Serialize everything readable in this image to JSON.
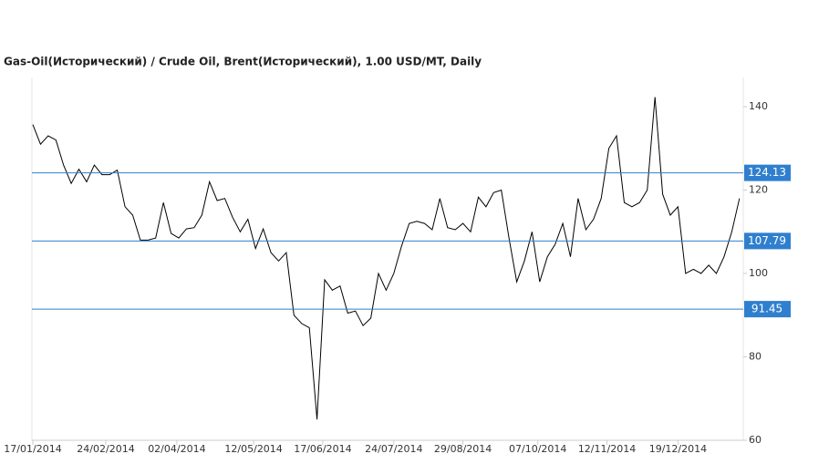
{
  "chart_data": {
    "type": "line",
    "title": "Gas-Oil(Исторический) / Crude Oil, Brent(Исторический), 1.00 USD/MT, Daily",
    "x": [
      "2014-01-17",
      "2014-01-21",
      "2014-01-25",
      "2014-01-29",
      "2014-02-02",
      "2014-02-06",
      "2014-02-10",
      "2014-02-14",
      "2014-02-18",
      "2014-02-22",
      "2014-02-26",
      "2014-03-02",
      "2014-03-06",
      "2014-03-10",
      "2014-03-14",
      "2014-03-18",
      "2014-03-22",
      "2014-03-26",
      "2014-03-30",
      "2014-04-03",
      "2014-04-07",
      "2014-04-11",
      "2014-04-15",
      "2014-04-19",
      "2014-04-23",
      "2014-04-27",
      "2014-05-01",
      "2014-05-05",
      "2014-05-09",
      "2014-05-13",
      "2014-05-17",
      "2014-05-21",
      "2014-05-25",
      "2014-05-29",
      "2014-06-02",
      "2014-06-06",
      "2014-06-10",
      "2014-06-14",
      "2014-06-18",
      "2014-06-22",
      "2014-06-26",
      "2014-06-30",
      "2014-07-04",
      "2014-07-08",
      "2014-07-12",
      "2014-07-16",
      "2014-07-20",
      "2014-07-24",
      "2014-07-28",
      "2014-08-01",
      "2014-08-05",
      "2014-08-09",
      "2014-08-13",
      "2014-08-17",
      "2014-08-21",
      "2014-08-25",
      "2014-08-29",
      "2014-09-02",
      "2014-09-06",
      "2014-09-10",
      "2014-09-14",
      "2014-09-18",
      "2014-09-22",
      "2014-09-26",
      "2014-09-30",
      "2014-10-04",
      "2014-10-08",
      "2014-10-12",
      "2014-10-16",
      "2014-10-20",
      "2014-10-24",
      "2014-10-28",
      "2014-11-01",
      "2014-11-05",
      "2014-11-09",
      "2014-11-13",
      "2014-11-17",
      "2014-11-21",
      "2014-11-25",
      "2014-11-29",
      "2014-12-03",
      "2014-12-07",
      "2014-12-11",
      "2014-12-15",
      "2014-12-19",
      "2014-12-23",
      "2014-12-27",
      "2014-12-31",
      "2015-01-04",
      "2015-01-08",
      "2015-01-12",
      "2015-01-16",
      "2015-01-20"
    ],
    "series": [
      {
        "color": "#000000",
        "values": [
          135.7,
          131,
          133,
          132,
          126,
          121.6,
          125,
          122,
          126,
          123.7,
          123.7,
          124.8,
          116,
          114,
          108,
          108,
          108.5,
          117,
          109.6,
          108.5,
          110.7,
          111,
          114,
          122,
          117.5,
          118,
          113.5,
          110,
          113,
          106,
          110.7,
          105,
          103,
          105,
          90,
          88,
          87,
          65,
          98.5,
          96,
          97,
          90.5,
          91,
          87.5,
          89.3,
          100,
          96,
          100,
          106.5,
          112,
          112.5,
          112,
          110.5,
          118,
          111,
          110.5,
          112,
          110,
          118.3,
          116,
          119.4,
          120,
          108.5,
          98,
          103,
          110,
          98,
          104,
          107,
          112,
          104,
          118,
          110.5,
          113,
          118,
          130,
          133,
          117,
          116,
          117,
          120,
          142.3,
          119,
          114,
          116,
          100,
          101,
          100,
          102,
          100,
          104,
          110,
          118
        ]
      }
    ],
    "xlim": [
      "2014-01-17",
      "2015-01-22"
    ],
    "xticks": [
      {
        "value": "2014-01-17",
        "label": "17/01/2014"
      },
      {
        "value": "2014-02-24",
        "label": "24/02/2014"
      },
      {
        "value": "2014-04-02",
        "label": "02/04/2014"
      },
      {
        "value": "2014-05-12",
        "label": "12/05/2014"
      },
      {
        "value": "2014-06-17",
        "label": "17/06/2014"
      },
      {
        "value": "2014-07-24",
        "label": "24/07/2014"
      },
      {
        "value": "2014-08-29",
        "label": "29/08/2014"
      },
      {
        "value": "2014-10-07",
        "label": "07/10/2014"
      },
      {
        "value": "2014-11-12",
        "label": "12/11/2014"
      },
      {
        "value": "2014-12-19",
        "label": "19/12/2014"
      }
    ],
    "ylim": [
      60,
      147
    ],
    "yticks": [
      60,
      80,
      100,
      120,
      140
    ],
    "reference_lines": [
      124.13,
      107.79,
      91.45
    ],
    "reference_color": "#2f7fce"
  }
}
